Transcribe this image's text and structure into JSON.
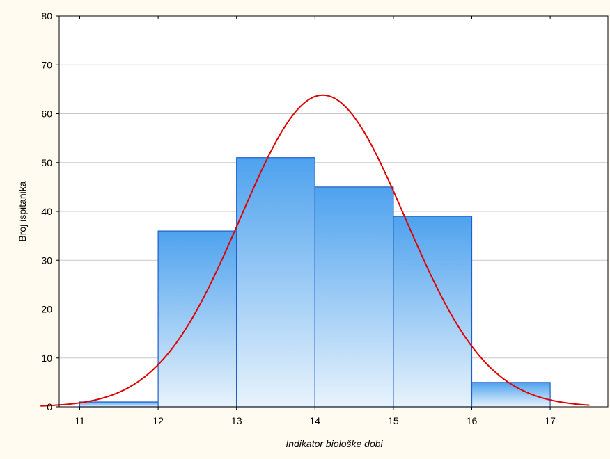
{
  "chart_data": {
    "type": "bar",
    "subtype": "histogram",
    "title": "",
    "xlabel": "Indikator biološke dobi",
    "ylabel": "Broj ispitanika",
    "xlim": [
      10.5,
      17.5
    ],
    "ylim": [
      0,
      80
    ],
    "x_ticks": [
      11,
      12,
      13,
      14,
      15,
      16,
      17
    ],
    "y_ticks": [
      0,
      10,
      20,
      30,
      40,
      50,
      60,
      70,
      80
    ],
    "grid": true,
    "bins": [
      {
        "from": 11,
        "to": 12,
        "value": 1
      },
      {
        "from": 12,
        "to": 13,
        "value": 36
      },
      {
        "from": 13,
        "to": 14,
        "value": 51
      },
      {
        "from": 14,
        "to": 15,
        "value": 45
      },
      {
        "from": 15,
        "to": 16,
        "value": 39
      },
      {
        "from": 16,
        "to": 17,
        "value": 5
      }
    ],
    "normal_curve": {
      "mean": 14.1,
      "sd": 1.05,
      "peak": 63.8,
      "color": "#e00000"
    },
    "bar_fill_top": "#4ea2ee",
    "bar_fill_bottom": "#e8f3fc",
    "bar_stroke": "#1f5fc8",
    "grid_color": "#c9c9c9"
  }
}
